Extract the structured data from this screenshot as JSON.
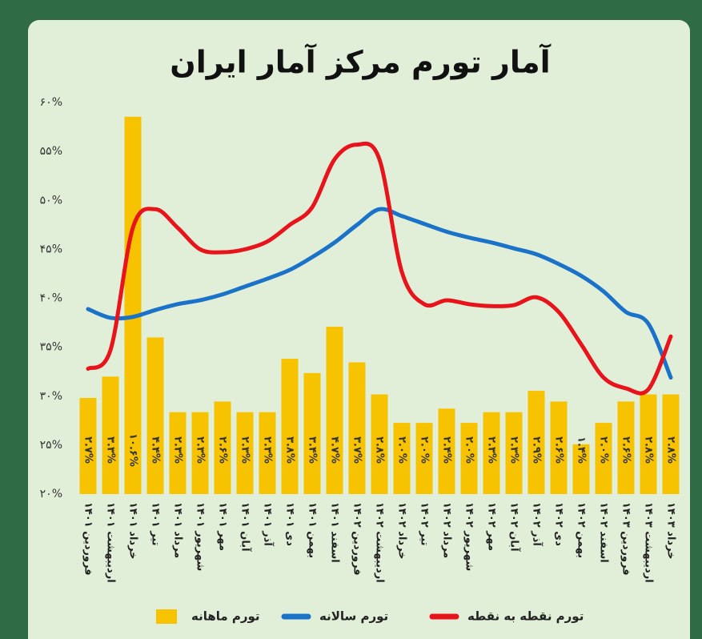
{
  "chart_data": {
    "type": "bar",
    "title": "آمار تورم مرکز آمار ایران",
    "categories": [
      "فروردین ۱۴۰۱",
      "اردیبهشت ۱۴۰۱",
      "خرداد ۱۴۰۱",
      "تیر ۱۴۰۱",
      "مرداد ۱۴۰۱",
      "شهریور ۱۴۰۱",
      "مهر ۱۴۰۱",
      "آبان ۱۴۰۱",
      "آذر ۱۴۰۱",
      "دی ۱۴۰۱",
      "بهمن ۱۴۰۱",
      "اسفند ۱۴۰۱",
      "فروردین ۱۴۰۲",
      "اردیبهشت ۱۴۰۲",
      "خرداد ۱۴۰۲",
      "تیر ۱۴۰۲",
      "مرداد ۱۴۰۲",
      "شهریور ۱۴۰۲",
      "مهر ۱۴۰۲",
      "آبان ۱۴۰۲",
      "آذر ۱۴۰۲",
      "دی ۱۴۰۲",
      "بهمن ۱۴۰۲",
      "اسفند ۱۴۰۲",
      "فروردین ۱۴۰۳",
      "اردیبهشت ۱۴۰۳",
      "خرداد ۱۴۰۳"
    ],
    "series": [
      {
        "name": "تورم ماهانه",
        "type": "bar",
        "axis": "y2",
        "color": "#f7c300",
        "values": [
          2.7,
          3.3,
          10.6,
          4.4,
          2.3,
          2.3,
          2.6,
          2.3,
          2.3,
          3.8,
          3.4,
          4.7,
          3.7,
          2.8,
          2.0,
          2.0,
          2.4,
          2.0,
          2.3,
          2.3,
          2.9,
          2.6,
          1.4,
          2.0,
          2.6,
          2.8,
          2.8
        ],
        "value_labels": [
          "۲.۷%",
          "۳.۳%",
          "۱۰.۶%",
          "۴.۴%",
          "۲.۳%",
          "۲.۳%",
          "۲.۶%",
          "۲.۳%",
          "۲.۳%",
          "۳.۸%",
          "۳.۴%",
          "۴.۷%",
          "۳.۷%",
          "۲.۸%",
          "۲.۰%",
          "۲.۰%",
          "۲.۴%",
          "۲.۰%",
          "۲.۳%",
          "۲.۳%",
          "۲.۹%",
          "۲.۶%",
          "۱.۴%",
          "۲.۰%",
          "۲.۶%",
          "۲.۸%",
          "۲.۸%"
        ]
      },
      {
        "name": "تورم سالانه",
        "type": "line",
        "color": "#1a72c9",
        "values": [
          38.9,
          38.0,
          38.1,
          38.8,
          39.4,
          39.8,
          40.4,
          41.2,
          42.0,
          42.9,
          44.2,
          45.7,
          47.5,
          49.1,
          48.4,
          47.6,
          46.8,
          46.2,
          45.7,
          45.1,
          44.5,
          43.5,
          42.3,
          40.7,
          38.6,
          37.4,
          31.9
        ]
      },
      {
        "name": "تورم نقطه به نقطه",
        "type": "line",
        "color": "#e8141c",
        "values": [
          32.8,
          34.7,
          47.2,
          49.1,
          47.2,
          45.0,
          44.7,
          45.0,
          45.8,
          47.5,
          49.3,
          54.2,
          55.7,
          54.2,
          42.7,
          39.4,
          39.8,
          39.4,
          39.2,
          39.3,
          40.1,
          38.6,
          35.3,
          31.9,
          30.8,
          30.7,
          36.1
        ]
      }
    ],
    "ylim": [
      20,
      60
    ],
    "yticks": [
      {
        "value": 20,
        "label": "۲۰%"
      },
      {
        "value": 25,
        "label": "۲۵%"
      },
      {
        "value": 30,
        "label": "۳۰%"
      },
      {
        "value": 35,
        "label": "۳۵%"
      },
      {
        "value": 40,
        "label": "۴۰%"
      },
      {
        "value": 45,
        "label": "۴۵%"
      },
      {
        "value": 50,
        "label": "۵۰%"
      },
      {
        "value": 55,
        "label": "۵۵%"
      },
      {
        "value": 60,
        "label": "۶۰%"
      }
    ],
    "y2lim": [
      0,
      11
    ],
    "grid": false
  }
}
